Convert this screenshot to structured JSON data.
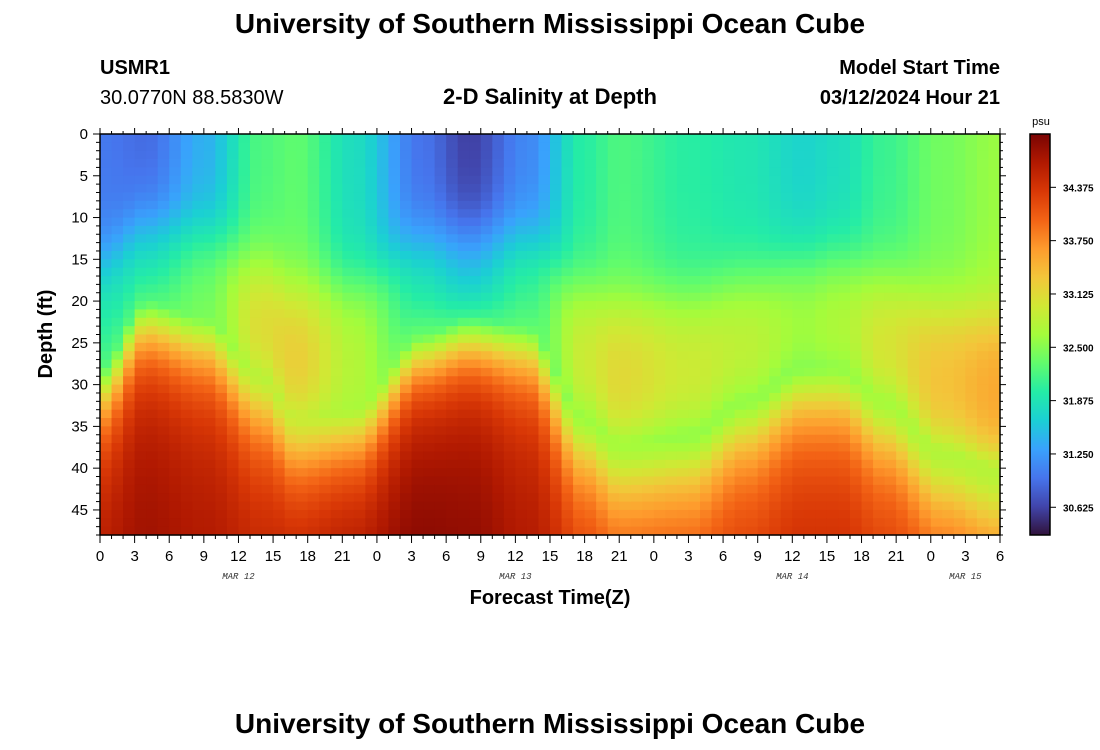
{
  "header": {
    "title": "University of Southern Mississippi Ocean Cube",
    "station": "USMR1",
    "coords": "30.0770N  88.5830W",
    "subtitle": "2-D Salinity at Depth",
    "model_start_label": "Model Start Time",
    "model_start_value": "03/12/2024 Hour 21"
  },
  "footer": {
    "title": "University of Southern Mississippi Ocean Cube"
  },
  "chart_data": {
    "type": "heatmap",
    "xlabel": "Forecast Time(Z)",
    "ylabel": "Depth (ft)",
    "x_tick_labels": [
      "0",
      "3",
      "6",
      "9",
      "12",
      "15",
      "18",
      "21",
      "0",
      "3",
      "6",
      "9",
      "12",
      "15",
      "18",
      "21",
      "0",
      "3",
      "6",
      "9",
      "12",
      "15",
      "18",
      "21",
      "0",
      "3",
      "6"
    ],
    "date_labels": [
      {
        "label": "MAR 12",
        "hour": 12
      },
      {
        "label": "MAR 13",
        "hour": 36
      },
      {
        "label": "MAR 14",
        "hour": 60
      },
      {
        "label": "MAR 15",
        "hour": 75
      }
    ],
    "xlim_hours": [
      0,
      78
    ],
    "ylim_ft": [
      0,
      48
    ],
    "y_ticks": [
      0,
      5,
      10,
      15,
      20,
      25,
      30,
      35,
      40,
      45
    ],
    "colorbar": {
      "unit": "psu",
      "min": 30.3,
      "max": 35.0,
      "ticks": [
        "30.625",
        "31.250",
        "31.875",
        "32.500",
        "33.125",
        "33.750",
        "34.375"
      ],
      "tick_values": [
        30.625,
        31.25,
        31.875,
        32.5,
        33.125,
        33.75,
        34.375
      ],
      "colors": [
        "#30123b",
        "#4145ab",
        "#4675ed",
        "#39a2fc",
        "#1bcfd4",
        "#24eca6",
        "#61fc6c",
        "#a4fc3b",
        "#d1e834",
        "#f3c63a",
        "#fe9b2d",
        "#f36315",
        "#d93806",
        "#b11901",
        "#7a0403"
      ]
    },
    "profile_hours": [
      0,
      4,
      9,
      14,
      17,
      22,
      28,
      32,
      37,
      42,
      45,
      51,
      56,
      61,
      64,
      68,
      73,
      78
    ],
    "halocline_ft": [
      28,
      20,
      22,
      29,
      34,
      33,
      24,
      22,
      23,
      34,
      37,
      36,
      32,
      28,
      28,
      32,
      38,
      40
    ],
    "surface_psu": [
      31.0,
      30.9,
      31.4,
      32.2,
      32.3,
      31.8,
      30.95,
      30.6,
      31.1,
      32.0,
      32.2,
      32.0,
      31.9,
      31.7,
      31.8,
      32.1,
      32.4,
      32.6
    ],
    "bottom_psu": [
      34.7,
      34.8,
      34.7,
      34.6,
      34.7,
      34.8,
      34.95,
      34.9,
      34.7,
      34.4,
      34.3,
      34.3,
      34.4,
      34.5,
      34.5,
      34.4,
      34.3,
      34.2
    ]
  }
}
